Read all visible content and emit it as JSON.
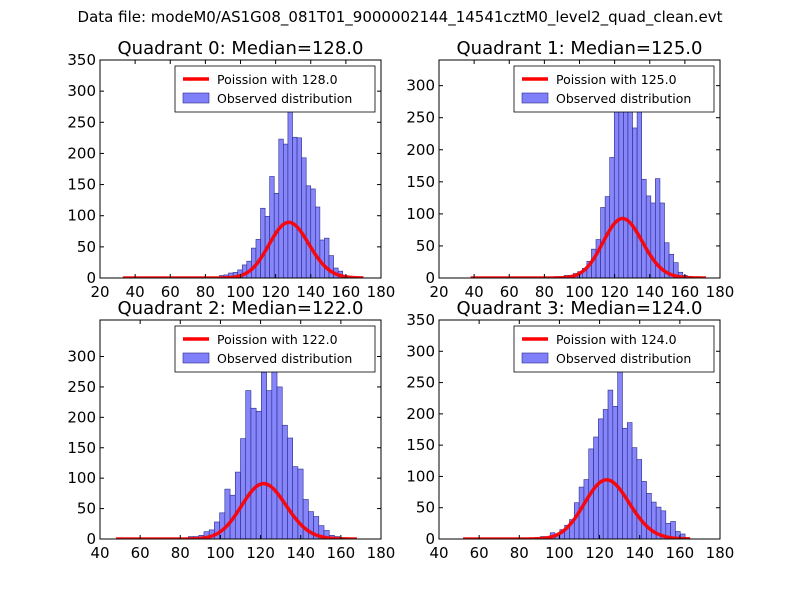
{
  "figure": {
    "suptitle": "Data file: modeM0/AS1G08_081T01_9000002144_14541cztM0_level2_quad_clean.evt"
  },
  "colors": {
    "bar_fill": "#7f7ffa",
    "bar_edge": "#2a2a8a",
    "poisson_line": "#ff0000"
  },
  "chart_data": [
    {
      "type": "bar",
      "title": "Quadrant 0: Median=128.0",
      "xlim": [
        20,
        180
      ],
      "ylim": [
        0,
        350
      ],
      "xticks": [
        20,
        40,
        60,
        80,
        100,
        120,
        140,
        160,
        180
      ],
      "yticks": [
        0,
        50,
        100,
        150,
        200,
        250,
        300,
        350
      ],
      "legend_position": "top-right",
      "legend": [
        "Poission with 128.0",
        "Observed distribution"
      ],
      "bin_width": 2.6,
      "bins": [
        [
          88,
          4
        ],
        [
          90.6,
          5
        ],
        [
          93.2,
          8
        ],
        [
          95.8,
          9
        ],
        [
          98.4,
          13
        ],
        [
          101,
          21
        ],
        [
          103.6,
          27
        ],
        [
          106.2,
          48
        ],
        [
          108.8,
          62
        ],
        [
          111.4,
          112
        ],
        [
          114,
          99
        ],
        [
          116.6,
          163
        ],
        [
          119.2,
          136
        ],
        [
          121.8,
          223
        ],
        [
          124.4,
          215
        ],
        [
          127,
          320
        ],
        [
          129.6,
          226
        ],
        [
          132.2,
          225
        ],
        [
          134.8,
          193
        ],
        [
          137.4,
          148
        ],
        [
          140,
          143
        ],
        [
          142.6,
          114
        ],
        [
          145.2,
          61
        ],
        [
          147.8,
          64
        ],
        [
          150.4,
          36
        ],
        [
          153,
          16
        ],
        [
          155.6,
          11
        ],
        [
          158.2,
          3
        ],
        [
          160.8,
          2
        ],
        [
          163.4,
          1
        ]
      ],
      "poisson": {
        "lambda": 128.0,
        "scale": 2535,
        "x": [
          33,
          170
        ]
      }
    },
    {
      "type": "bar",
      "title": "Quadrant 1: Median=125.0",
      "xlim": [
        20,
        180
      ],
      "ylim": [
        0,
        340
      ],
      "xticks": [
        20,
        40,
        60,
        80,
        100,
        120,
        140,
        160,
        180
      ],
      "yticks": [
        0,
        50,
        100,
        150,
        200,
        250,
        300
      ],
      "legend_position": "top-right",
      "legend": [
        "Poission with 125.0",
        "Observed distribution"
      ],
      "bin_width": 2.6,
      "bins": [
        [
          86,
          2
        ],
        [
          88.6,
          1
        ],
        [
          91.2,
          4
        ],
        [
          93.8,
          4
        ],
        [
          96.4,
          7
        ],
        [
          99,
          10
        ],
        [
          101.6,
          15
        ],
        [
          104.2,
          26
        ],
        [
          106.8,
          45
        ],
        [
          109.4,
          60
        ],
        [
          112,
          110
        ],
        [
          114.6,
          127
        ],
        [
          117.2,
          188
        ],
        [
          119.8,
          268
        ],
        [
          122.4,
          270
        ],
        [
          125,
          316
        ],
        [
          127.6,
          275
        ],
        [
          130.2,
          234
        ],
        [
          132.8,
          286
        ],
        [
          135.4,
          154
        ],
        [
          138,
          128
        ],
        [
          140.6,
          117
        ],
        [
          143.2,
          155
        ],
        [
          145.8,
          117
        ],
        [
          148.4,
          55
        ],
        [
          151,
          37
        ],
        [
          153.6,
          24
        ],
        [
          156.2,
          9
        ],
        [
          158.8,
          4
        ],
        [
          161.4,
          2
        ]
      ],
      "poisson": {
        "lambda": 125.0,
        "scale": 2600,
        "x": [
          38,
          172
        ]
      }
    },
    {
      "type": "bar",
      "title": "Quadrant 2: Median=122.0",
      "xlim": [
        40,
        180
      ],
      "ylim": [
        0,
        360
      ],
      "xticks": [
        40,
        60,
        80,
        100,
        120,
        140,
        160,
        180
      ],
      "yticks": [
        0,
        50,
        100,
        150,
        200,
        250,
        300
      ],
      "legend_position": "top-right",
      "legend": [
        "Poission with 122.0",
        "Observed distribution"
      ],
      "bin_width": 2.6,
      "bins": [
        [
          84,
          4
        ],
        [
          86.6,
          4
        ],
        [
          89.2,
          6
        ],
        [
          91.8,
          12
        ],
        [
          94.4,
          15
        ],
        [
          97,
          28
        ],
        [
          99.6,
          43
        ],
        [
          102.2,
          82
        ],
        [
          104.8,
          72
        ],
        [
          107.4,
          110
        ],
        [
          110,
          165
        ],
        [
          112.6,
          244
        ],
        [
          115.2,
          215
        ],
        [
          117.8,
          210
        ],
        [
          120.4,
          274
        ],
        [
          123,
          244
        ],
        [
          125.6,
          320
        ],
        [
          128.2,
          250
        ],
        [
          130.8,
          187
        ],
        [
          133.4,
          166
        ],
        [
          136,
          119
        ],
        [
          138.6,
          115
        ],
        [
          141.2,
          65
        ],
        [
          143.8,
          45
        ],
        [
          146.4,
          37
        ],
        [
          149,
          22
        ],
        [
          151.6,
          14
        ],
        [
          154.2,
          6
        ],
        [
          156.8,
          4
        ],
        [
          159.4,
          2
        ]
      ],
      "poisson": {
        "lambda": 122.0,
        "scale": 2520,
        "x": [
          48,
          168
        ]
      }
    },
    {
      "type": "bar",
      "title": "Quadrant 3: Median=124.0",
      "xlim": [
        40,
        180
      ],
      "ylim": [
        0,
        350
      ],
      "xticks": [
        40,
        60,
        80,
        100,
        120,
        140,
        160,
        180
      ],
      "yticks": [
        0,
        50,
        100,
        150,
        200,
        250,
        300,
        350
      ],
      "legend_position": "top-right",
      "legend": [
        "Poission with 124.0",
        "Observed distribution"
      ],
      "bin_width": 2.4,
      "bins": [
        [
          81,
          1
        ],
        [
          88.2,
          2
        ],
        [
          90.6,
          4
        ],
        [
          93,
          3
        ],
        [
          95.4,
          10
        ],
        [
          97.8,
          7
        ],
        [
          100.2,
          15
        ],
        [
          102.6,
          22
        ],
        [
          105,
          31
        ],
        [
          107.4,
          58
        ],
        [
          109.8,
          83
        ],
        [
          112.2,
          95
        ],
        [
          114.6,
          144
        ],
        [
          117,
          163
        ],
        [
          119.4,
          192
        ],
        [
          121.8,
          207
        ],
        [
          124.2,
          238
        ],
        [
          126.6,
          212
        ],
        [
          129,
          277
        ],
        [
          131.4,
          177
        ],
        [
          133.8,
          186
        ],
        [
          136.2,
          146
        ],
        [
          138.6,
          127
        ],
        [
          141,
          92
        ],
        [
          143.4,
          73
        ],
        [
          145.8,
          59
        ],
        [
          148.2,
          51
        ],
        [
          150.6,
          45
        ],
        [
          153,
          25
        ],
        [
          155.4,
          28
        ],
        [
          157.8,
          12
        ],
        [
          160.2,
          8
        ],
        [
          162.6,
          2
        ]
      ],
      "poisson": {
        "lambda": 124.0,
        "scale": 2640,
        "x": [
          52,
          165
        ]
      }
    }
  ]
}
